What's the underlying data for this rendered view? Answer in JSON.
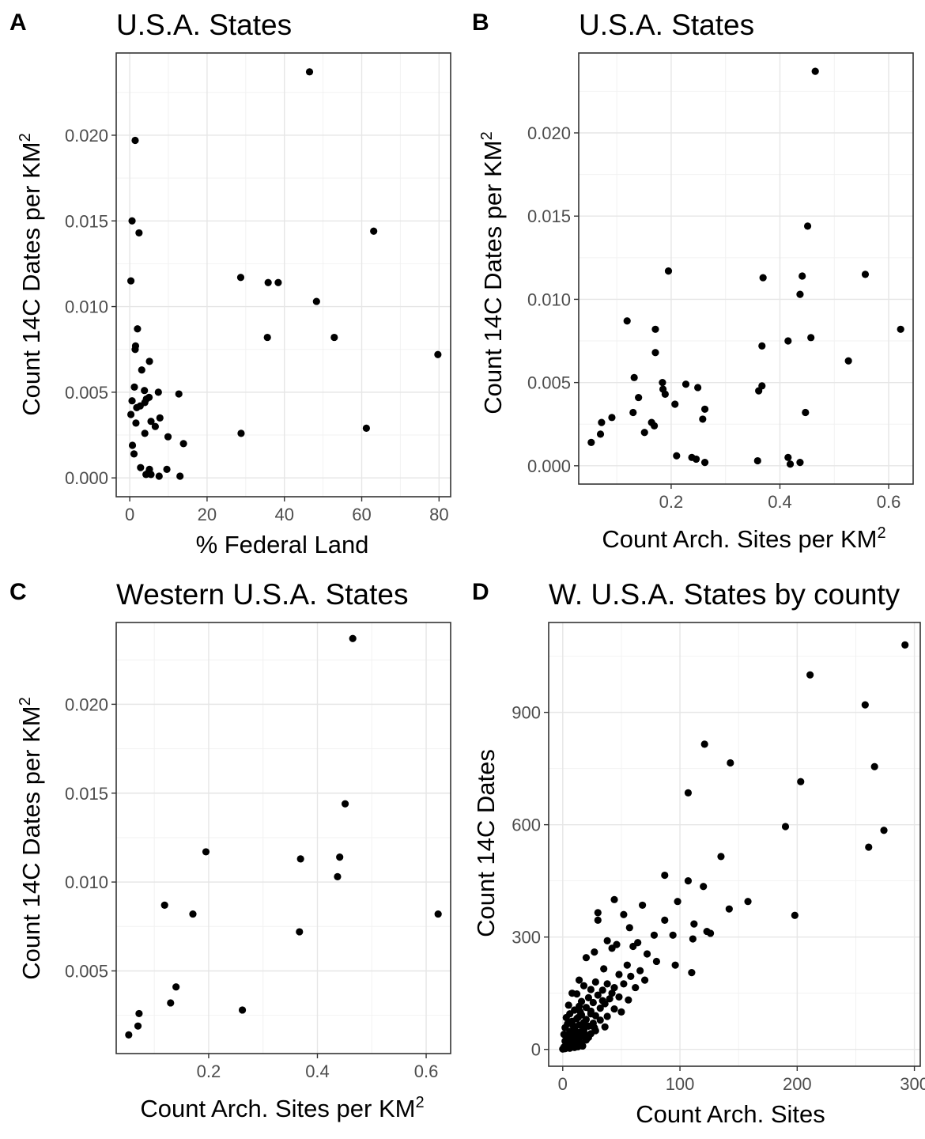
{
  "chart_data": [
    {
      "type": "scatter",
      "panel_label": "A",
      "title": "U.S.A. States",
      "xlabel": "% Federal Land",
      "ylabel": "Count 14C Dates per KM",
      "ylabel_sup": "2",
      "xlim": [
        -3.5,
        83
      ],
      "ylim": [
        -0.0011,
        0.0248
      ],
      "xticks": [
        0,
        20,
        40,
        60,
        80
      ],
      "xtick_labels": [
        "0",
        "20",
        "40",
        "60",
        "80"
      ],
      "yticks": [
        0.0,
        0.005,
        0.01,
        0.015,
        0.02
      ],
      "ytick_labels": [
        "0.000",
        "0.005",
        "0.010",
        "0.015",
        "0.020"
      ],
      "grid": true,
      "points": [
        [
          46.5,
          0.0237
        ],
        [
          1.4,
          0.0197
        ],
        [
          0.6,
          0.015
        ],
        [
          2.4,
          0.0143
        ],
        [
          63.1,
          0.0144
        ],
        [
          0.3,
          0.0115
        ],
        [
          28.7,
          0.0117
        ],
        [
          35.8,
          0.0114
        ],
        [
          38.4,
          0.0114
        ],
        [
          48.3,
          0.0103
        ],
        [
          2.0,
          0.0087
        ],
        [
          35.6,
          0.0082
        ],
        [
          52.9,
          0.0082
        ],
        [
          1.5,
          0.0077
        ],
        [
          1.4,
          0.0075
        ],
        [
          79.7,
          0.0072
        ],
        [
          5.1,
          0.0068
        ],
        [
          3.1,
          0.0063
        ],
        [
          1.2,
          0.0053
        ],
        [
          3.8,
          0.0051
        ],
        [
          7.4,
          0.005
        ],
        [
          12.7,
          0.0049
        ],
        [
          5.0,
          0.0047
        ],
        [
          4.3,
          0.0046
        ],
        [
          0.6,
          0.0045
        ],
        [
          3.9,
          0.0044
        ],
        [
          2.7,
          0.0042
        ],
        [
          1.8,
          0.0041
        ],
        [
          0.3,
          0.0037
        ],
        [
          7.8,
          0.0035
        ],
        [
          5.5,
          0.0033
        ],
        [
          1.6,
          0.0032
        ],
        [
          6.6,
          0.003
        ],
        [
          3.9,
          0.0026
        ],
        [
          28.8,
          0.0026
        ],
        [
          61.2,
          0.0029
        ],
        [
          9.9,
          0.0024
        ],
        [
          13.9,
          0.002
        ],
        [
          0.7,
          0.0019
        ],
        [
          1.1,
          0.0014
        ],
        [
          2.8,
          0.0006
        ],
        [
          9.6,
          0.0005
        ],
        [
          5.1,
          0.0005
        ],
        [
          4.8,
          0.0003
        ],
        [
          4.2,
          0.0002
        ],
        [
          5.5,
          0.0002
        ],
        [
          7.6,
          0.0001
        ],
        [
          13.0,
          0.0001
        ]
      ]
    },
    {
      "type": "scatter",
      "panel_label": "B",
      "title": "U.S.A. States",
      "xlabel": "Count Arch. Sites per KM",
      "xlabel_sup": "2",
      "ylabel": "Count 14C Dates per KM",
      "ylabel_sup": "2",
      "xlim": [
        0.03,
        0.645
      ],
      "ylim": [
        -0.0011,
        0.0248
      ],
      "xticks": [
        0.2,
        0.4,
        0.6
      ],
      "xtick_labels": [
        "0.2",
        "0.4",
        "0.6"
      ],
      "yticks": [
        0.0,
        0.005,
        0.01,
        0.015,
        0.02
      ],
      "ytick_labels": [
        "0.000",
        "0.005",
        "0.010",
        "0.015",
        "0.020"
      ],
      "grid": true,
      "points": [
        [
          0.465,
          0.0237
        ],
        [
          0.451,
          0.0144
        ],
        [
          0.195,
          0.0117
        ],
        [
          0.557,
          0.0115
        ],
        [
          0.369,
          0.0113
        ],
        [
          0.441,
          0.0114
        ],
        [
          0.437,
          0.0103
        ],
        [
          0.119,
          0.0087
        ],
        [
          0.171,
          0.0082
        ],
        [
          0.622,
          0.0082
        ],
        [
          0.457,
          0.0077
        ],
        [
          0.415,
          0.0075
        ],
        [
          0.367,
          0.0072
        ],
        [
          0.171,
          0.0068
        ],
        [
          0.526,
          0.0063
        ],
        [
          0.132,
          0.0053
        ],
        [
          0.184,
          0.005
        ],
        [
          0.227,
          0.0049
        ],
        [
          0.367,
          0.0048
        ],
        [
          0.185,
          0.0046
        ],
        [
          0.249,
          0.0047
        ],
        [
          0.361,
          0.0045
        ],
        [
          0.189,
          0.0043
        ],
        [
          0.14,
          0.0041
        ],
        [
          0.207,
          0.0037
        ],
        [
          0.262,
          0.0034
        ],
        [
          0.13,
          0.0032
        ],
        [
          0.447,
          0.0032
        ],
        [
          0.091,
          0.0029
        ],
        [
          0.258,
          0.0028
        ],
        [
          0.072,
          0.0026
        ],
        [
          0.164,
          0.0026
        ],
        [
          0.169,
          0.0024
        ],
        [
          0.151,
          0.002
        ],
        [
          0.07,
          0.0019
        ],
        [
          0.053,
          0.0014
        ],
        [
          0.21,
          0.0006
        ],
        [
          0.415,
          0.0005
        ],
        [
          0.238,
          0.0005
        ],
        [
          0.246,
          0.0004
        ],
        [
          0.359,
          0.0003
        ],
        [
          0.262,
          0.0002
        ],
        [
          0.437,
          0.0002
        ],
        [
          0.419,
          0.0001
        ]
      ]
    },
    {
      "type": "scatter",
      "panel_label": "C",
      "title": "Western U.S.A. States",
      "xlabel": "Count Arch. Sites per KM",
      "xlabel_sup": "2",
      "ylabel": "Count 14C Dates per KM",
      "ylabel_sup": "2",
      "xlim": [
        0.03,
        0.645
      ],
      "ylim": [
        0.00035,
        0.0246
      ],
      "xticks": [
        0.2,
        0.4,
        0.6
      ],
      "xtick_labels": [
        "0.2",
        "0.4",
        "0.6"
      ],
      "yticks": [
        0.005,
        0.01,
        0.015,
        0.02
      ],
      "ytick_labels": [
        "0.005",
        "0.010",
        "0.015",
        "0.020"
      ],
      "grid": true,
      "points": [
        [
          0.465,
          0.0237
        ],
        [
          0.451,
          0.0144
        ],
        [
          0.195,
          0.0117
        ],
        [
          0.369,
          0.0113
        ],
        [
          0.441,
          0.0114
        ],
        [
          0.437,
          0.0103
        ],
        [
          0.119,
          0.0087
        ],
        [
          0.171,
          0.0082
        ],
        [
          0.622,
          0.0082
        ],
        [
          0.367,
          0.0072
        ],
        [
          0.14,
          0.0041
        ],
        [
          0.13,
          0.0032
        ],
        [
          0.262,
          0.0028
        ],
        [
          0.072,
          0.0026
        ],
        [
          0.07,
          0.0019
        ],
        [
          0.053,
          0.0014
        ]
      ]
    },
    {
      "type": "scatter",
      "panel_label": "D",
      "title": "W. U.S.A. States by county",
      "xlabel": "Count Arch. Sites",
      "ylabel": "Count 14C Dates",
      "xlim": [
        -12,
        305
      ],
      "ylim": [
        -45,
        1140
      ],
      "xticks": [
        0,
        100,
        200,
        300
      ],
      "xtick_labels": [
        "0",
        "100",
        "200",
        "300"
      ],
      "yticks": [
        0,
        300,
        600,
        900
      ],
      "ytick_labels": [
        "0",
        "300",
        "600",
        "900"
      ],
      "grid": true,
      "points": [
        [
          292,
          1080
        ],
        [
          211,
          1000
        ],
        [
          258,
          920
        ],
        [
          121,
          815
        ],
        [
          143,
          765
        ],
        [
          266,
          755
        ],
        [
          203,
          715
        ],
        [
          107,
          685
        ],
        [
          190,
          595
        ],
        [
          274,
          585
        ],
        [
          261,
          540
        ],
        [
          135,
          515
        ],
        [
          87,
          465
        ],
        [
          107,
          450
        ],
        [
          120,
          435
        ],
        [
          44,
          400
        ],
        [
          98,
          395
        ],
        [
          158,
          395
        ],
        [
          68,
          385
        ],
        [
          142,
          375
        ],
        [
          30,
          365
        ],
        [
          52,
          360
        ],
        [
          198,
          358
        ],
        [
          30,
          345
        ],
        [
          87,
          345
        ],
        [
          112,
          335
        ],
        [
          57,
          325
        ],
        [
          123,
          315
        ],
        [
          126,
          310
        ],
        [
          78,
          305
        ],
        [
          94,
          305
        ],
        [
          111,
          295
        ],
        [
          38,
          290
        ],
        [
          64,
          285
        ],
        [
          46,
          280
        ],
        [
          60,
          275
        ],
        [
          42,
          270
        ],
        [
          27,
          260
        ],
        [
          72,
          255
        ],
        [
          20,
          245
        ],
        [
          80,
          235
        ],
        [
          55,
          225
        ],
        [
          96,
          225
        ],
        [
          35,
          215
        ],
        [
          66,
          210
        ],
        [
          110,
          205
        ],
        [
          48,
          200
        ],
        [
          58,
          195
        ],
        [
          14,
          185
        ],
        [
          70,
          185
        ],
        [
          28,
          180
        ],
        [
          38,
          175
        ],
        [
          52,
          175
        ],
        [
          18,
          170
        ],
        [
          44,
          165
        ],
        [
          62,
          165
        ],
        [
          24,
          160
        ],
        [
          34,
          158
        ],
        [
          8,
          150
        ],
        [
          12,
          148
        ],
        [
          30,
          145
        ],
        [
          48,
          140
        ],
        [
          22,
          138
        ],
        [
          40,
          135
        ],
        [
          56,
          132
        ],
        [
          16,
          128
        ],
        [
          26,
          125
        ],
        [
          36,
          122
        ],
        [
          5,
          118
        ],
        [
          14,
          115
        ],
        [
          20,
          112
        ],
        [
          32,
          110
        ],
        [
          44,
          108
        ],
        [
          10,
          105
        ],
        [
          24,
          102
        ],
        [
          50,
          100
        ],
        [
          6,
          95
        ],
        [
          16,
          92
        ],
        [
          28,
          90
        ],
        [
          38,
          88
        ],
        [
          3,
          85
        ],
        [
          12,
          82
        ],
        [
          20,
          80
        ],
        [
          32,
          78
        ],
        [
          8,
          75
        ],
        [
          18,
          72
        ],
        [
          26,
          70
        ],
        [
          4,
          68
        ],
        [
          14,
          65
        ],
        [
          22,
          62
        ],
        [
          36,
          60
        ],
        [
          2,
          58
        ],
        [
          10,
          55
        ],
        [
          18,
          52
        ],
        [
          28,
          50
        ],
        [
          6,
          48
        ],
        [
          14,
          45
        ],
        [
          24,
          42
        ],
        [
          1,
          40
        ],
        [
          8,
          38
        ],
        [
          16,
          35
        ],
        [
          22,
          32
        ],
        [
          4,
          30
        ],
        [
          12,
          28
        ],
        [
          20,
          25
        ],
        [
          2,
          22
        ],
        [
          9,
          20
        ],
        [
          15,
          18
        ],
        [
          5,
          15
        ],
        [
          11,
          12
        ],
        [
          3,
          10
        ],
        [
          7,
          8
        ],
        [
          1,
          6
        ],
        [
          4,
          4
        ],
        [
          2,
          2
        ],
        [
          0,
          1
        ],
        [
          6,
          3
        ],
        [
          10,
          5
        ],
        [
          13,
          7
        ],
        [
          17,
          9
        ],
        [
          9,
          13
        ],
        [
          7,
          26
        ],
        [
          3,
          35
        ],
        [
          11,
          44
        ],
        [
          17,
          60
        ],
        [
          6,
          70
        ],
        [
          13,
          85
        ],
        [
          24,
          95
        ],
        [
          34,
          130
        ],
        [
          42,
          150
        ],
        [
          19,
          40
        ],
        [
          27,
          58
        ],
        [
          15,
          100
        ],
        [
          9,
          63
        ]
      ]
    }
  ]
}
